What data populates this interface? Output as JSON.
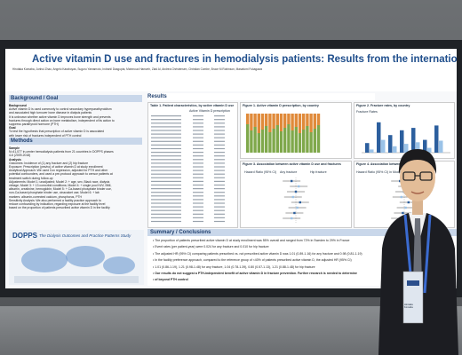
{
  "poster": {
    "title": "Active vitamin D use and fractures in hemodialysis patients: Results from the international DOPPS",
    "authors": "Hirotaka Komaba, Junhui Zhao, Angelo Karaboyas, Suguru Yamamoto, Indranil Dasgupta, Mahmoud Hamzeh, Ziad Al, Andrea Christensen, Christian Combe, Bruce M Robinson, Masafumi Fukagawa",
    "background_heading": "Background / Goal",
    "background_lines": [
      "Background",
      "Active vitamin D is used commonly to control secondary hyperparathyroidism",
      "and associated high turnover bone disease in dialysis patients",
      "It is unknown whether active vitamin D improves bone strength and prevents",
      "fractures through direct action on bone metabolism, independent of its action to",
      "suppress parathyroid hormone (PTH)",
      "Goal",
      "To test the hypothesis that prescription of active vitamin D is associated",
      "with lower risk of fractures independent of PTH control"
    ],
    "methods_heading": "Methods",
    "methods_lines": [
      "Sample",
      "N=41,077 in-center hemodialysis patients from 21 countries in DOPPS phases",
      "4-6 (2009-2018)",
      "Analysis",
      "Outcomes: Incidence of (1) any fracture and (2) hip fracture",
      "Exposure: Prescription (yes/no) of active vitamin D at study enrollment",
      "Analytical Approach: We used Cox regression, adjusted for PTH and other",
      "potential confounders, and used a pre-protocol approach to censor patients at",
      "treatment switch during follow-up",
      "Adjustments: Model 1: unadjusted; Model 2: + age, sex, Black race, dialysis",
      "vintage; Model 3: + 13 comorbid conditions; Model 4: + single pool Kt/V, BMI,",
      "albumin, creatinine, hemoglobin; Model 5: + Ca-based phosphate binder use,",
      "non-Ca-based phosphate binder use, cinacalcet use; Model 6: + lab",
      "markers: albumin-corrected calcium, phosphorus, PTH",
      "Sensitivity Analysis: We also performed a facility practice approach to",
      "reduce confounding by indication, regarding exposure at the facility level",
      "based on the proportion of patients prescribed active vitamin D in the facility"
    ],
    "dopps_logo": "DOPPS",
    "dopps_tagline": "The Dialysis Outcomes and Practice Patterns Study",
    "results_heading": "Results",
    "table1_title": "Table 1. Patient characteristics, by active vitamin D use",
    "table1_col_yes": "Active Vitamin D prescription",
    "figure1_title": "Figure 1. Active vitamin D prescription, by country",
    "figure2_title": "Figure 2. Fracture rates, by country",
    "figure3_title": "Figure 3. Association between active vitamin D use and fractures",
    "figure4_title": "Figure 4. Association between facility",
    "figure2_ylabel": "Fracture Rates",
    "figure3_axis": "Hazard Ratio (95% CI)",
    "figure4_axis": "Hazard Ratio (95% CI) in Model 6",
    "legend_any": "Any fracture",
    "legend_hip": "Hip fracture",
    "summary_heading": "Summary / Conclusions",
    "summary_lines": [
      "The proportion of patients prescribed active vitamin D at study enrollment was 55% overall and ranged from 72% in Sweden to 29% in France",
      "Event rates (per patient-year) were 0.024 for any fracture and 0.010 for hip fracture",
      "The adjusted HR (95% CI) comparing patients prescribed vs. not prescribed active vitamin D was 1.01 (0.89-1.16) for any fracture and 0.98 (0.81-1.19)",
      "In the facility preference approach, compared to the reference group of <40% of patients prescribed active vitamin D, the adjusted HR (95% CI)",
      "1.01 (0.86-1.19), 1.21 (0.98-1.48) for any fracture, 1.04 (0.78-1.39), 0.80 (0.57-1.13), 1.21 (0.88-1.48) for hip fracture",
      "Our results do not suggest a PTH-independent benefit of active vitamin D in fracture prevention. Further research is needed to determine",
      "of beyond PTH control"
    ],
    "badge_name": "Hirotaka Komaba"
  },
  "chart_data": [
    {
      "type": "bar",
      "title": "Figure 2. Fracture rates, by country",
      "ylabel": "Fracture Rates",
      "series": [
        {
          "name": "Any fracture",
          "values": [
            0.012,
            0.038,
            0.022,
            0.028,
            0.031,
            0.016,
            0.034
          ]
        },
        {
          "name": "Hip fracture",
          "values": [
            0.004,
            0.016,
            0.008,
            0.011,
            0.013,
            0.006,
            0.015
          ]
        }
      ]
    }
  ],
  "colors": {
    "poster_title": "#1f4e8c",
    "section_band": "#c9d7ea",
    "bar_any": "#2c5f9e",
    "bar_hip": "#9bc3e8",
    "stack_green": "#7fa84b",
    "stack_orange": "#e08a3a"
  }
}
